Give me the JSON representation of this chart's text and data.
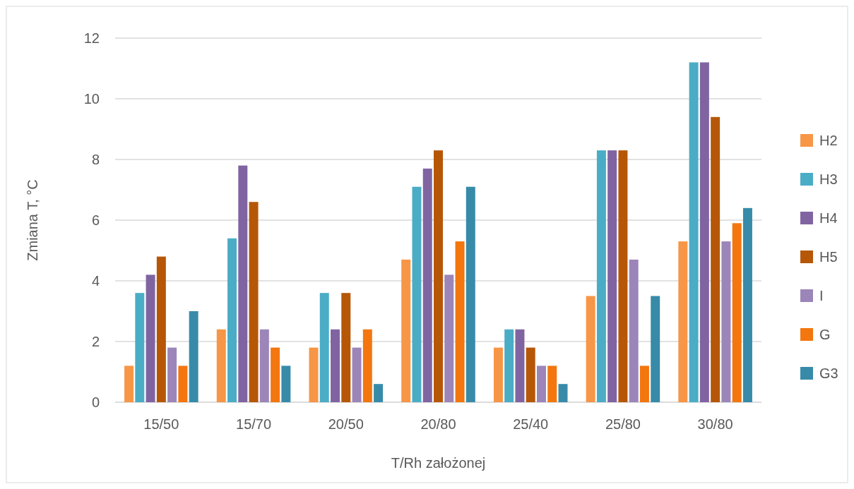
{
  "chart_data": {
    "type": "bar",
    "xlabel": "T/Rh założonej",
    "ylabel": "Zmiana T, °C",
    "categories": [
      "15/50",
      "15/70",
      "20/50",
      "20/80",
      "25/40",
      "25/80",
      "30/80"
    ],
    "series": [
      {
        "name": "H2",
        "color": "#f79646",
        "values": [
          1.2,
          2.4,
          1.8,
          4.7,
          1.8,
          3.5,
          5.3
        ]
      },
      {
        "name": "H3",
        "color": "#4bacc6",
        "values": [
          3.6,
          5.4,
          3.6,
          7.1,
          2.4,
          8.3,
          11.2
        ]
      },
      {
        "name": "H4",
        "color": "#8064a2",
        "values": [
          4.2,
          7.8,
          2.4,
          7.7,
          2.4,
          8.3,
          11.2
        ]
      },
      {
        "name": "H5",
        "color": "#b65708",
        "values": [
          4.8,
          6.6,
          3.6,
          8.3,
          1.8,
          8.3,
          9.4
        ]
      },
      {
        "name": "I",
        "color": "#9c85b8",
        "values": [
          1.8,
          2.4,
          1.8,
          4.2,
          1.2,
          4.7,
          5.3
        ]
      },
      {
        "name": "G",
        "color": "#f3760f",
        "values": [
          1.2,
          1.8,
          2.4,
          5.3,
          1.2,
          1.2,
          5.9
        ]
      },
      {
        "name": "G3",
        "color": "#378ba8",
        "values": [
          3.0,
          1.2,
          0.6,
          7.1,
          0.6,
          3.5,
          6.4
        ]
      }
    ],
    "ylim": [
      0,
      12
    ],
    "yticks": [
      0,
      2,
      4,
      6,
      8,
      10,
      12
    ],
    "grid": "y",
    "legend": "right"
  }
}
